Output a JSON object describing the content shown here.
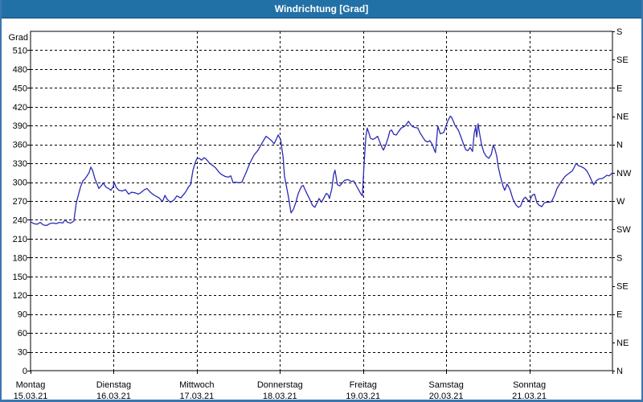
{
  "window": {
    "title": "Windrichtung [Grad]"
  },
  "colors": {
    "frame_border": "#3b77af",
    "titlebar_bg": "#2271a6",
    "titlebar_text": "#ffffff",
    "line": "#2a2ab4",
    "grid": "#000000",
    "plot_bg": "#ffffff",
    "axis_text": "#000000"
  },
  "chart_data": {
    "type": "line",
    "title": "Windrichtung [Grad]",
    "grid": "dashed",
    "legend": "none",
    "y_left": {
      "label": "Grad",
      "min": 0,
      "max": 540,
      "tick_step": 30,
      "ticks": [
        510,
        480,
        450,
        420,
        390,
        360,
        330,
        300,
        270,
        240,
        210,
        180,
        150,
        120,
        90,
        60,
        30,
        0
      ]
    },
    "y_right": {
      "unit": "compass",
      "tick_step_deg": 45,
      "top_deg": 540,
      "labels_top_to_bottom": [
        "S",
        "SE",
        "E",
        "NE",
        "N",
        "NW",
        "W",
        "SW",
        "S",
        "SE",
        "E",
        "NE",
        "N"
      ]
    },
    "x": {
      "hours_total": 168,
      "days": [
        {
          "name": "Montag",
          "date": "15.03.21"
        },
        {
          "name": "Dienstag",
          "date": "16.03.21"
        },
        {
          "name": "Mittwoch",
          "date": "17.03.21"
        },
        {
          "name": "Donnerstag",
          "date": "18.03.21"
        },
        {
          "name": "Freitag",
          "date": "19.03.21"
        },
        {
          "name": "Samstag",
          "date": "20.03.21"
        },
        {
          "name": "Sonntag",
          "date": "21.03.21"
        }
      ]
    },
    "series": [
      {
        "name": "Windrichtung",
        "color": "#2a2ab4",
        "points": [
          [
            0,
            237
          ],
          [
            0.9,
            234
          ],
          [
            1.9,
            233
          ],
          [
            2.8,
            236
          ],
          [
            3.7,
            232
          ],
          [
            4.6,
            231
          ],
          [
            5.6,
            234
          ],
          [
            6.5,
            235
          ],
          [
            7.4,
            234
          ],
          [
            8.4,
            236
          ],
          [
            9.3,
            235
          ],
          [
            10,
            240
          ],
          [
            10.7,
            236
          ],
          [
            11.6,
            235
          ],
          [
            12.5,
            238
          ],
          [
            13.2,
            267
          ],
          [
            14.4,
            292
          ],
          [
            15.1,
            302
          ],
          [
            15.8,
            306
          ],
          [
            16.2,
            309
          ],
          [
            16.9,
            315
          ],
          [
            17.4,
            324
          ],
          [
            17.9,
            319
          ],
          [
            18.6,
            305
          ],
          [
            19.3,
            296
          ],
          [
            19.7,
            290
          ],
          [
            20.7,
            296
          ],
          [
            20.9,
            299
          ],
          [
            21.8,
            292
          ],
          [
            22.5,
            290
          ],
          [
            23.2,
            287
          ],
          [
            23.9,
            293
          ],
          [
            24.1,
            300
          ],
          [
            24.8,
            291
          ],
          [
            25.5,
            287
          ],
          [
            26.5,
            286
          ],
          [
            27.4,
            288
          ],
          [
            28.3,
            281
          ],
          [
            29.2,
            284
          ],
          [
            30.2,
            283
          ],
          [
            31.1,
            281
          ],
          [
            31.8,
            283
          ],
          [
            32.9,
            288
          ],
          [
            33.6,
            290
          ],
          [
            34.6,
            284
          ],
          [
            35.5,
            280
          ],
          [
            36.4,
            277
          ],
          [
            37.1,
            275
          ],
          [
            38.1,
            269
          ],
          [
            38.8,
            279
          ],
          [
            39.4,
            273
          ],
          [
            40.4,
            268
          ],
          [
            41.5,
            272
          ],
          [
            42.2,
            278
          ],
          [
            43.4,
            275
          ],
          [
            44.6,
            283
          ],
          [
            45.7,
            293
          ],
          [
            46.2,
            296
          ],
          [
            46.9,
            319
          ],
          [
            47.6,
            332
          ],
          [
            48,
            337
          ],
          [
            48.7,
            338
          ],
          [
            49.4,
            335
          ],
          [
            50.1,
            339
          ],
          [
            50.6,
            337
          ],
          [
            51.7,
            330
          ],
          [
            52.7,
            326
          ],
          [
            53.4,
            323
          ],
          [
            54.5,
            315
          ],
          [
            55.2,
            312
          ],
          [
            56.2,
            309
          ],
          [
            57.1,
            308
          ],
          [
            57.8,
            310
          ],
          [
            58.5,
            299
          ],
          [
            59.2,
            300
          ],
          [
            60.1,
            299
          ],
          [
            61,
            300
          ],
          [
            62.2,
            315
          ],
          [
            63.3,
            330
          ],
          [
            64.5,
            343
          ],
          [
            65.7,
            351
          ],
          [
            66.8,
            362
          ],
          [
            68,
            373
          ],
          [
            68.7,
            370
          ],
          [
            69.6,
            366
          ],
          [
            70.3,
            361
          ],
          [
            71,
            369
          ],
          [
            71.5,
            375
          ],
          [
            72.2,
            368
          ],
          [
            72.9,
            340
          ],
          [
            73.3,
            310
          ],
          [
            73.8,
            296
          ],
          [
            74.5,
            275
          ],
          [
            75.2,
            251
          ],
          [
            75.9,
            257
          ],
          [
            76.6,
            268
          ],
          [
            77.3,
            282
          ],
          [
            78.2,
            293
          ],
          [
            78.7,
            295
          ],
          [
            79.6,
            284
          ],
          [
            80.5,
            274
          ],
          [
            81.4,
            263
          ],
          [
            82.1,
            260
          ],
          [
            82.8,
            268
          ],
          [
            83.3,
            274
          ],
          [
            84,
            268
          ],
          [
            84.7,
            275
          ],
          [
            85.4,
            282
          ],
          [
            85.9,
            280
          ],
          [
            86.3,
            274
          ],
          [
            87,
            290
          ],
          [
            87.5,
            312
          ],
          [
            87.9,
            319
          ],
          [
            88.6,
            296
          ],
          [
            89.3,
            294
          ],
          [
            90,
            299
          ],
          [
            90.7,
            303
          ],
          [
            91.7,
            304
          ],
          [
            92.6,
            301
          ],
          [
            93.3,
            302
          ],
          [
            94,
            295
          ],
          [
            94.7,
            288
          ],
          [
            95.4,
            281
          ],
          [
            95.8,
            278
          ],
          [
            96.3,
            330
          ],
          [
            96.8,
            372
          ],
          [
            97.2,
            386
          ],
          [
            97.7,
            378
          ],
          [
            98.1,
            370
          ],
          [
            98.8,
            368
          ],
          [
            99.5,
            370
          ],
          [
            100.2,
            373
          ],
          [
            100.9,
            363
          ],
          [
            101.4,
            356
          ],
          [
            101.9,
            351
          ],
          [
            102.6,
            360
          ],
          [
            103.3,
            372
          ],
          [
            103.7,
            381
          ],
          [
            104.2,
            383
          ],
          [
            104.9,
            376
          ],
          [
            105.6,
            375
          ],
          [
            106.3,
            381
          ],
          [
            107,
            386
          ],
          [
            107.7,
            388
          ],
          [
            108.4,
            391
          ],
          [
            109.1,
            397
          ],
          [
            109.8,
            391
          ],
          [
            110.4,
            388
          ],
          [
            111.1,
            387
          ],
          [
            111.8,
            386
          ],
          [
            112.5,
            378
          ],
          [
            113.2,
            372
          ],
          [
            113.9,
            366
          ],
          [
            114.6,
            364
          ],
          [
            115.3,
            366
          ],
          [
            116,
            360
          ],
          [
            116.5,
            352
          ],
          [
            116.9,
            347
          ],
          [
            117.6,
            389
          ],
          [
            118.3,
            377
          ],
          [
            119.3,
            379
          ],
          [
            120,
            390
          ],
          [
            120.5,
            398
          ],
          [
            121.2,
            405
          ],
          [
            121.6,
            403
          ],
          [
            122.6,
            390
          ],
          [
            123.5,
            383
          ],
          [
            124.2,
            373
          ],
          [
            124.9,
            362
          ],
          [
            125.6,
            352
          ],
          [
            126.2,
            350
          ],
          [
            126.9,
            355
          ],
          [
            127.6,
            349
          ],
          [
            128.1,
            378
          ],
          [
            128.5,
            388
          ],
          [
            128.8,
            372
          ],
          [
            129.2,
            393
          ],
          [
            129.7,
            376
          ],
          [
            130.2,
            360
          ],
          [
            130.9,
            347
          ],
          [
            131.6,
            341
          ],
          [
            132.3,
            338
          ],
          [
            133,
            344
          ],
          [
            133.6,
            359
          ],
          [
            134.1,
            352
          ],
          [
            134.6,
            341
          ],
          [
            135,
            325
          ],
          [
            135.7,
            308
          ],
          [
            136.4,
            294
          ],
          [
            136.9,
            287
          ],
          [
            137.6,
            297
          ],
          [
            138,
            293
          ],
          [
            138.5,
            287
          ],
          [
            139.2,
            274
          ],
          [
            140.1,
            264
          ],
          [
            140.8,
            260
          ],
          [
            141.5,
            262
          ],
          [
            142,
            270
          ],
          [
            142.4,
            274
          ],
          [
            142.9,
            276
          ],
          [
            143.6,
            271
          ],
          [
            144.1,
            270
          ],
          [
            144.8,
            279
          ],
          [
            145.5,
            281
          ],
          [
            146.2,
            267
          ],
          [
            146.9,
            263
          ],
          [
            147.6,
            261
          ],
          [
            148.3,
            267
          ],
          [
            149,
            268
          ],
          [
            149.7,
            268
          ],
          [
            150.4,
            269
          ],
          [
            151.3,
            279
          ],
          [
            152,
            290
          ],
          [
            153.1,
            300
          ],
          [
            154.3,
            309
          ],
          [
            155.2,
            313
          ],
          [
            156.4,
            318
          ],
          [
            157.1,
            325
          ],
          [
            157.5,
            330
          ],
          [
            158.2,
            326
          ],
          [
            158.9,
            325
          ],
          [
            159.9,
            322
          ],
          [
            160.6,
            318
          ],
          [
            161.3,
            311
          ],
          [
            162.2,
            300
          ],
          [
            162.6,
            296
          ],
          [
            163.3,
            302
          ],
          [
            164,
            305
          ],
          [
            165.2,
            306
          ],
          [
            166.4,
            311
          ],
          [
            167.1,
            310
          ],
          [
            168,
            315
          ]
        ]
      }
    ]
  }
}
